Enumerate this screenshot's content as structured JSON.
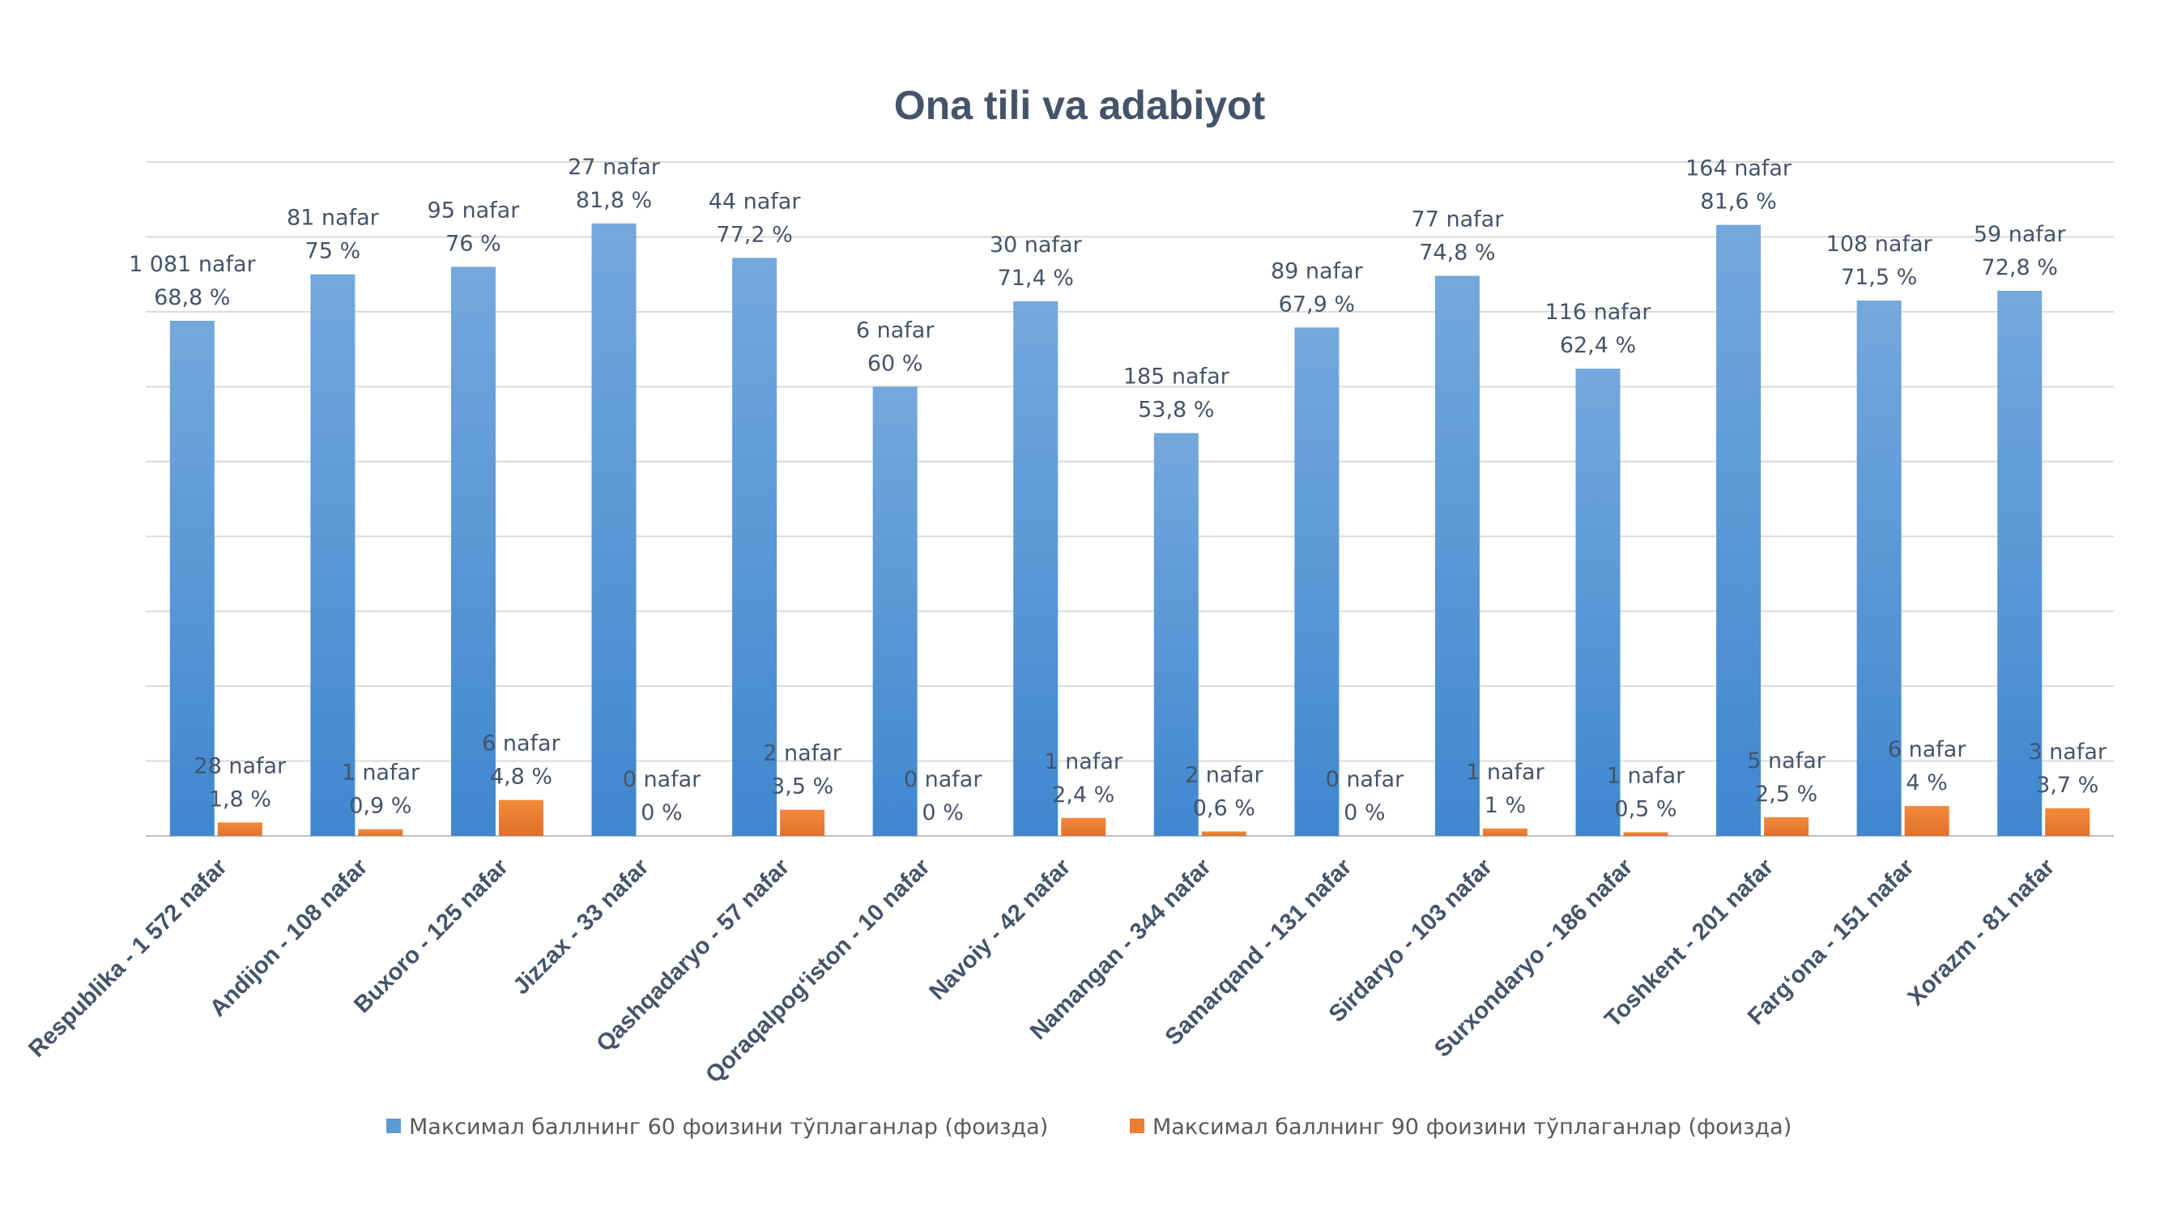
{
  "chart_data": {
    "type": "bar",
    "title": "Ona tili va adabiyot",
    "xlabel": "",
    "ylabel": "",
    "ylim": [
      0,
      90
    ],
    "grid": true,
    "legend_position": "bottom",
    "categories": [
      "Respublika - 1 572 nafar",
      "Andijon - 108 nafar",
      "Buxoro - 125 nafar",
      "Jizzax - 33 nafar",
      "Qashqadaryo - 57 nafar",
      "Qoraqalpog‘iston - 10 nafar",
      "Navoiy - 42 nafar",
      "Namangan - 344 nafar",
      "Samarqand - 131 nafar",
      "Sirdaryo - 103 nafar",
      "Surxondaryo - 186 nafar",
      "Toshkent - 201 nafar",
      "Farg‘ona - 151 nafar",
      "Xorazm - 81 nafar"
    ],
    "series": [
      {
        "name": "Максимал баллнинг 60 фоизини тўплаганлар (фоизда)",
        "color": "#5b9bd5",
        "values": [
          68.8,
          75,
          76,
          81.8,
          77.2,
          60,
          71.4,
          53.8,
          67.9,
          74.8,
          62.4,
          81.6,
          71.5,
          72.8
        ],
        "labels": [
          [
            "1 081 nafar",
            "68,8 %"
          ],
          [
            "81 nafar",
            "75 %"
          ],
          [
            "95 nafar",
            "76 %"
          ],
          [
            "27 nafar",
            "81,8 %"
          ],
          [
            "44 nafar",
            "77,2 %"
          ],
          [
            "6 nafar",
            "60 %"
          ],
          [
            "30 nafar",
            "71,4 %"
          ],
          [
            "185 nafar",
            "53,8 %"
          ],
          [
            "89 nafar",
            "67,9 %"
          ],
          [
            "77 nafar",
            "74,8 %"
          ],
          [
            "116 nafar",
            "62,4 %"
          ],
          [
            "164 nafar",
            "81,6 %"
          ],
          [
            "108 nafar",
            "71,5 %"
          ],
          [
            "59 nafar",
            "72,8 %"
          ]
        ]
      },
      {
        "name": "Максимал баллнинг 90 фоизини тўплаганлар (фоизда)",
        "color": "#ed7d31",
        "values": [
          1.8,
          0.9,
          4.8,
          0,
          3.5,
          0,
          2.4,
          0.6,
          0,
          1,
          0.5,
          2.5,
          4,
          3.7
        ],
        "labels": [
          [
            "28 nafar",
            "1,8 %"
          ],
          [
            "1 nafar",
            "0,9 %"
          ],
          [
            "6 nafar",
            "4,8 %"
          ],
          [
            "0 nafar",
            "0 %"
          ],
          [
            "2 nafar",
            "3,5 %"
          ],
          [
            "0 nafar",
            "0 %"
          ],
          [
            "1 nafar",
            "2,4 %"
          ],
          [
            "2 nafar",
            "0,6 %"
          ],
          [
            "0 nafar",
            "0 %"
          ],
          [
            "1 nafar",
            "1 %"
          ],
          [
            "1 nafar",
            "0,5 %"
          ],
          [
            "5 nafar",
            "2,5 %"
          ],
          [
            "6 nafar",
            "4 %"
          ],
          [
            "3 nafar",
            "3,7 %"
          ]
        ]
      }
    ]
  }
}
